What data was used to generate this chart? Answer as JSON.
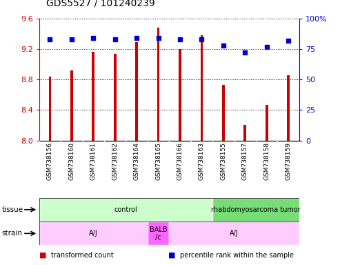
{
  "title": "GDS5527 / 101240239",
  "samples": [
    "GSM738156",
    "GSM738160",
    "GSM738161",
    "GSM738162",
    "GSM738164",
    "GSM738165",
    "GSM738166",
    "GSM738163",
    "GSM738155",
    "GSM738157",
    "GSM738158",
    "GSM738159"
  ],
  "bar_values": [
    8.84,
    8.92,
    9.16,
    9.14,
    9.29,
    9.48,
    9.2,
    9.38,
    8.73,
    8.2,
    8.47,
    8.86
  ],
  "dot_values": [
    83,
    83,
    84,
    83,
    84,
    84,
    83,
    83,
    78,
    72,
    77,
    82
  ],
  "bar_color": "#cc0000",
  "dot_color": "#0000cc",
  "ylim_left": [
    8.0,
    9.6
  ],
  "ylim_right": [
    0,
    100
  ],
  "yticks_left": [
    8.0,
    8.4,
    8.8,
    9.2,
    9.6
  ],
  "yticks_right": [
    0,
    25,
    50,
    75,
    100
  ],
  "tissue_groups": [
    {
      "label": "control",
      "start": 0,
      "end": 8,
      "color": "#ccffcc"
    },
    {
      "label": "rhabdomyosarcoma tumor",
      "start": 8,
      "end": 12,
      "color": "#77dd77"
    }
  ],
  "strain_groups": [
    {
      "label": "A/J",
      "start": 0,
      "end": 5,
      "color": "#ffccff"
    },
    {
      "label": "BALB\n/c",
      "start": 5,
      "end": 6,
      "color": "#ff66ff"
    },
    {
      "label": "A/J",
      "start": 6,
      "end": 12,
      "color": "#ffccff"
    }
  ],
  "legend_items": [
    {
      "color": "#cc0000",
      "label": "transformed count"
    },
    {
      "color": "#0000cc",
      "label": "percentile rank within the sample"
    }
  ],
  "bar_width": 0.12,
  "dot_size": 22,
  "title_fontsize": 10,
  "tick_label_color_left": "#cc0000",
  "tick_label_color_right": "#0000cc",
  "xlabels_bg": "#cccccc",
  "divider_color": "#ffffff"
}
